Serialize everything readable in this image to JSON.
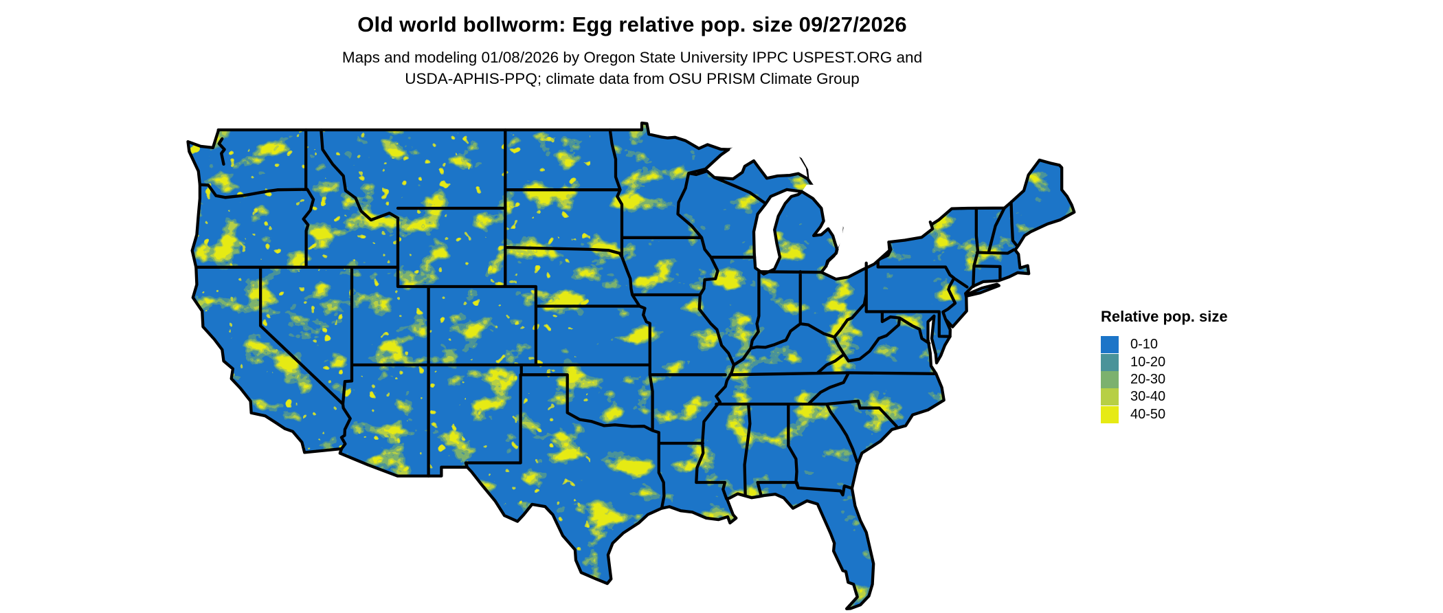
{
  "header": {
    "title": "Old world bollworm: Egg relative pop. size 09/27/2026",
    "subtitle_line1": "Maps and modeling 01/08/2026 by Oregon State University IPPC USPEST.ORG and",
    "subtitle_line2": "USDA-APHIS-PPQ; climate data from OSU PRISM Climate Group"
  },
  "legend": {
    "title": "Relative pop. size",
    "items": [
      {
        "label": "0-10",
        "color": "#1c75c8"
      },
      {
        "label": "10-20",
        "color": "#4a9399"
      },
      {
        "label": "20-30",
        "color": "#7cb16e"
      },
      {
        "label": "30-40",
        "color": "#b7cf45"
      },
      {
        "label": "40-50",
        "color": "#e6ea14"
      }
    ]
  },
  "map": {
    "region": "Continental United States",
    "land_base_color": "#1c75c8",
    "border_color": "#000000",
    "water_color": "#ffffff"
  }
}
